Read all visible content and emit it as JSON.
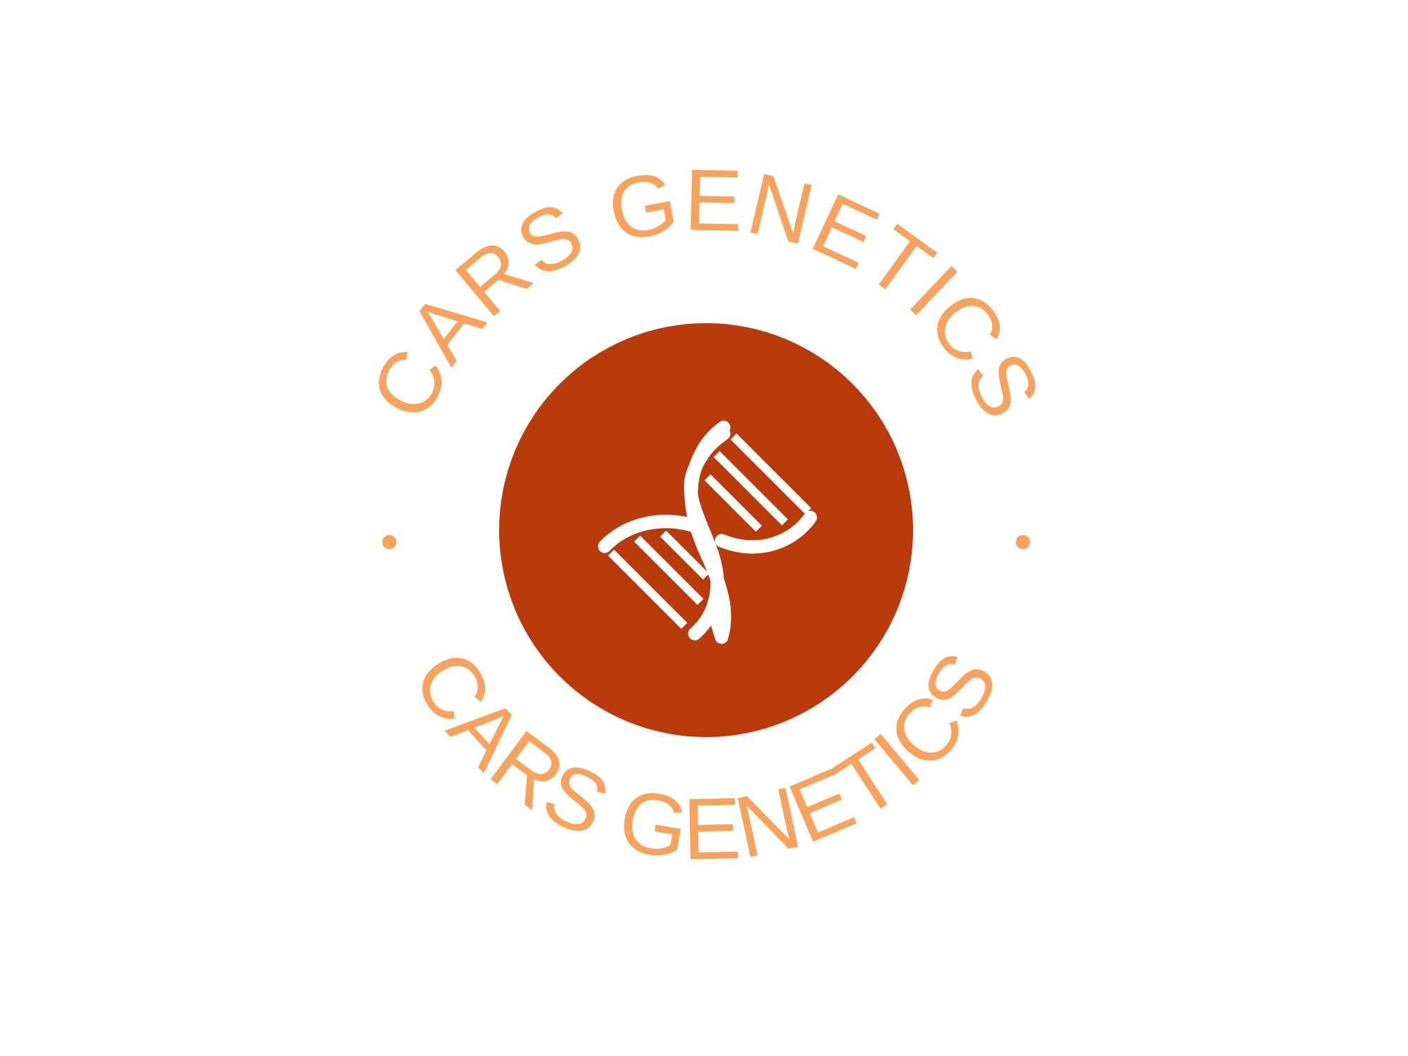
{
  "logo": {
    "brand_top": "CARS GENETICS",
    "brand_bottom": "CARS GENETICS",
    "center_icon": "dna-helix-icon",
    "separator_icon": "dot-icon",
    "colors": {
      "background": "#ffffff",
      "circle": "#b93a0a",
      "text": "#f7a35e",
      "icon": "#ffffff"
    }
  }
}
